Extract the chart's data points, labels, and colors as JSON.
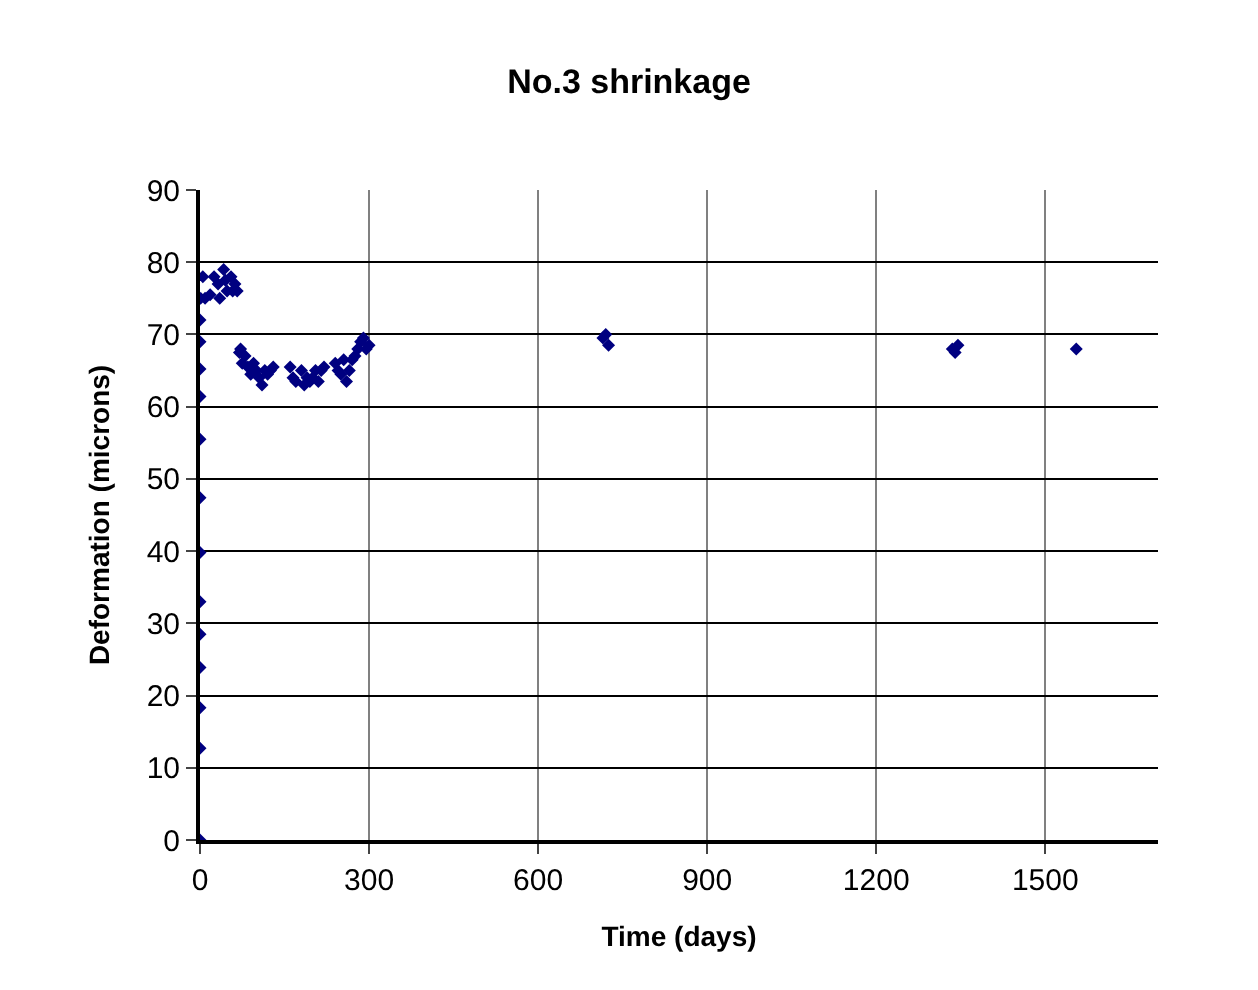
{
  "chart_data": {
    "type": "scatter",
    "title": "No.3 shrinkage",
    "xlabel": "Time (days)",
    "ylabel": "Deformation (microns)",
    "x": [
      0,
      0,
      0,
      0,
      0,
      0,
      0,
      0,
      0,
      0,
      0,
      0,
      0,
      1,
      5,
      9,
      18,
      25,
      32,
      35,
      42,
      45,
      48,
      55,
      58,
      62,
      66,
      70,
      72,
      75,
      80,
      85,
      90,
      95,
      100,
      105,
      110,
      115,
      120,
      125,
      130,
      160,
      165,
      170,
      180,
      185,
      190,
      195,
      200,
      205,
      210,
      215,
      220,
      240,
      245,
      250,
      255,
      260,
      265,
      270,
      275,
      280,
      285,
      290,
      295,
      300,
      715,
      720,
      725,
      1335,
      1340,
      1345,
      1555
    ],
    "values": [
      0,
      12.7,
      18.3,
      23.9,
      28.5,
      33,
      39.8,
      47.4,
      55.5,
      61.4,
      65.2,
      69,
      72,
      75,
      78,
      75,
      75.5,
      78,
      77,
      75,
      79,
      77.5,
      76,
      78,
      76,
      77,
      76,
      67.5,
      68,
      66,
      67,
      65.5,
      64.5,
      66,
      65,
      64,
      63,
      65,
      64.5,
      65,
      65.5,
      65.5,
      64,
      63.5,
      65,
      63,
      64,
      63.5,
      64,
      65,
      63.5,
      65,
      65.5,
      66,
      65,
      64.5,
      66.5,
      63.5,
      65,
      66.5,
      67,
      68,
      69,
      69.5,
      68,
      68.5,
      69.5,
      70,
      68.5,
      68,
      67.5,
      68.5,
      68
    ],
    "color": "#000080",
    "marker": "diamond",
    "xlim": [
      0,
      1700
    ],
    "xticks": [
      0,
      300,
      600,
      900,
      1200,
      1500
    ],
    "ylim": [
      0,
      90
    ],
    "yticks": [
      0,
      10,
      20,
      30,
      40,
      50,
      60,
      70,
      80,
      90
    ],
    "grid": true
  }
}
